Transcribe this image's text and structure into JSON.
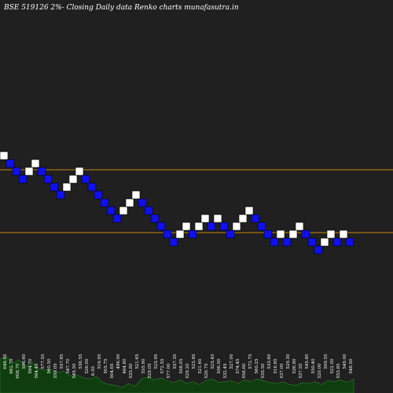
{
  "colors": {
    "background": "#202020",
    "up_brick": "#ffffff",
    "down_brick": "#1010ee",
    "brick_outline": "#000000",
    "hline": "#c8860a",
    "volume": "#0f3d0f",
    "volume_edge": "#2e7d2e",
    "label_text": "#ffffff"
  },
  "chart_data": {
    "type": "renko",
    "title": "BSE 519126  2%-  Closing Daily data  Renko  charts munafasutra.in",
    "brick_size_pct": 2,
    "bricks": [
      {
        "level": 0,
        "dir": "up"
      },
      {
        "level": -1,
        "dir": "down"
      },
      {
        "level": -2,
        "dir": "down"
      },
      {
        "level": -3,
        "dir": "down"
      },
      {
        "level": -2,
        "dir": "up"
      },
      {
        "level": -1,
        "dir": "up"
      },
      {
        "level": -2,
        "dir": "down"
      },
      {
        "level": -3,
        "dir": "down"
      },
      {
        "level": -4,
        "dir": "down"
      },
      {
        "level": -5,
        "dir": "down"
      },
      {
        "level": -4,
        "dir": "up"
      },
      {
        "level": -3,
        "dir": "up"
      },
      {
        "level": -2,
        "dir": "up"
      },
      {
        "level": -3,
        "dir": "down"
      },
      {
        "level": -4,
        "dir": "down"
      },
      {
        "level": -5,
        "dir": "down"
      },
      {
        "level": -6,
        "dir": "down"
      },
      {
        "level": -7,
        "dir": "down"
      },
      {
        "level": -8,
        "dir": "down"
      },
      {
        "level": -7,
        "dir": "up"
      },
      {
        "level": -6,
        "dir": "up"
      },
      {
        "level": -5,
        "dir": "up"
      },
      {
        "level": -6,
        "dir": "down"
      },
      {
        "level": -7,
        "dir": "down"
      },
      {
        "level": -8,
        "dir": "down"
      },
      {
        "level": -9,
        "dir": "down"
      },
      {
        "level": -10,
        "dir": "down"
      },
      {
        "level": -11,
        "dir": "down"
      },
      {
        "level": -10,
        "dir": "up"
      },
      {
        "level": -9,
        "dir": "up"
      },
      {
        "level": -10,
        "dir": "down"
      },
      {
        "level": -9,
        "dir": "up"
      },
      {
        "level": -8,
        "dir": "up"
      },
      {
        "level": -9,
        "dir": "down"
      },
      {
        "level": -8,
        "dir": "up"
      },
      {
        "level": -9,
        "dir": "down"
      },
      {
        "level": -10,
        "dir": "down"
      },
      {
        "level": -9,
        "dir": "up"
      },
      {
        "level": -8,
        "dir": "up"
      },
      {
        "level": -7,
        "dir": "up"
      },
      {
        "level": -8,
        "dir": "down"
      },
      {
        "level": -9,
        "dir": "down"
      },
      {
        "level": -10,
        "dir": "down"
      },
      {
        "level": -11,
        "dir": "down"
      },
      {
        "level": -10,
        "dir": "up"
      },
      {
        "level": -11,
        "dir": "down"
      },
      {
        "level": -10,
        "dir": "up"
      },
      {
        "level": -9,
        "dir": "up"
      },
      {
        "level": -10,
        "dir": "down"
      },
      {
        "level": -11,
        "dir": "down"
      },
      {
        "level": -12,
        "dir": "down"
      },
      {
        "level": -11,
        "dir": "up"
      },
      {
        "level": -10,
        "dir": "up"
      },
      {
        "level": -11,
        "dir": "down"
      },
      {
        "level": -10,
        "dir": "up"
      },
      {
        "level": -11,
        "dir": "down"
      }
    ],
    "reference_levels": [
      -2.3,
      -10.3
    ],
    "tick_labels": [
      "648.95",
      "662.70",
      "608.70",
      "596.60",
      "594.70",
      "584.45",
      "577.55",
      "560.50",
      "559.05",
      "557.85",
      "547.70",
      "545.50",
      "536.55",
      "526.00",
      "6.55",
      "516.95",
      "505.75",
      "504.65",
      "496.00",
      "484.80",
      "533.80",
      "521.65",
      "555.90",
      "529.05",
      "525.95",
      "572.55",
      "577.00",
      "557.35",
      "558.05",
      "529.20",
      "523.95",
      "521.60",
      "526.75",
      "525.45",
      "556.00",
      "532.45",
      "527.00",
      "574.45",
      "558.60",
      "572.75",
      "560.25",
      "535.50",
      "533.60",
      "516.85",
      "537.00",
      "529.30",
      "536.90",
      "537.55",
      "545.80",
      "550.40",
      "520.00",
      "509.55",
      "522.00",
      "553.85",
      "549.00",
      "548.00"
    ],
    "volumes": [
      0.72,
      0.78,
      0.64,
      0.7,
      0.55,
      0.66,
      0.52,
      0.48,
      0.5,
      0.44,
      0.46,
      0.36,
      0.38,
      0.32,
      0.3,
      0.35,
      0.22,
      0.18,
      0.16,
      0.12,
      0.2,
      0.14,
      0.3,
      0.34,
      0.28,
      0.32,
      0.26,
      0.22,
      0.28,
      0.2,
      0.24,
      0.18,
      0.26,
      0.3,
      0.22,
      0.24,
      0.26,
      0.2,
      0.28,
      0.24,
      0.3,
      0.26,
      0.22,
      0.2,
      0.24,
      0.18,
      0.16,
      0.22,
      0.2,
      0.24,
      0.18,
      0.26,
      0.24,
      0.28,
      0.22,
      0.3
    ]
  }
}
